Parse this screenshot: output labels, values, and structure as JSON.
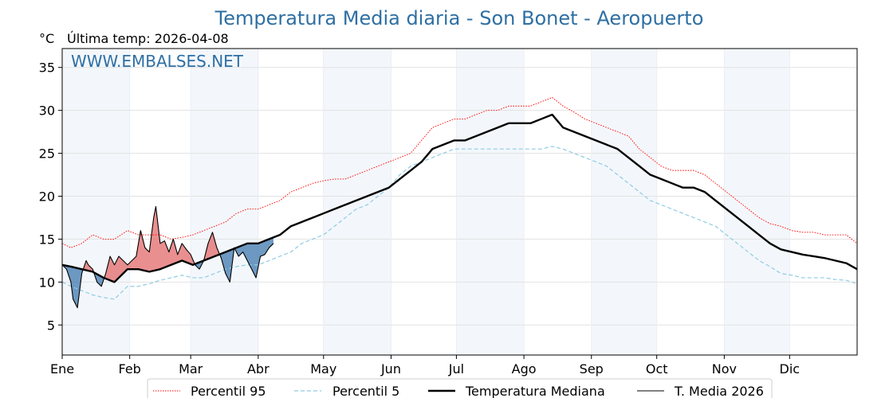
{
  "chart_data": {
    "type": "line",
    "title": "Temperatura Media diaria - Son Bonet - Aeropuerto",
    "unit_label": "°C",
    "last_temp_label": "Última temp: 2026-04-08",
    "watermark": "WWW.EMBALSES.NET",
    "ylim": [
      1.5,
      37.2
    ],
    "yticks": [
      5,
      10,
      15,
      20,
      25,
      30,
      35
    ],
    "xlim": [
      1,
      366
    ],
    "months": [
      "Ene",
      "Feb",
      "Mar",
      "Abr",
      "May",
      "Jun",
      "Jul",
      "Ago",
      "Sep",
      "Oct",
      "Nov",
      "Dic"
    ],
    "month_starts": [
      1,
      32,
      60,
      91,
      121,
      152,
      182,
      213,
      244,
      274,
      305,
      335
    ],
    "legend_placement": "bottom-center",
    "legend": [
      "Percentil 95",
      "Percentil 5",
      "Temperatura Mediana",
      "T. Media 2026"
    ],
    "series": [
      {
        "name": "Percentil 95",
        "x": [
          1,
          5,
          10,
          15,
          20,
          25,
          31,
          36,
          41,
          46,
          51,
          56,
          61,
          66,
          71,
          76,
          81,
          86,
          91,
          96,
          101,
          106,
          111,
          116,
          121,
          126,
          131,
          136,
          141,
          146,
          151,
          156,
          161,
          166,
          171,
          176,
          181,
          186,
          191,
          196,
          201,
          206,
          211,
          216,
          221,
          226,
          231,
          236,
          241,
          246,
          251,
          256,
          261,
          266,
          271,
          276,
          281,
          286,
          291,
          296,
          301,
          306,
          311,
          316,
          321,
          326,
          331,
          336,
          341,
          346,
          351,
          356,
          361,
          366
        ],
        "values": [
          14.5,
          14,
          14.5,
          15.5,
          15,
          15,
          16,
          15.5,
          15.5,
          15.5,
          15,
          15.2,
          15.5,
          16,
          16.5,
          17,
          18,
          18.5,
          18.5,
          19,
          19.5,
          20.5,
          21,
          21.5,
          21.8,
          22,
          22,
          22.5,
          23,
          23.5,
          24,
          24.5,
          25,
          26.5,
          28,
          28.5,
          29,
          29,
          29.5,
          30,
          30,
          30.5,
          30.5,
          30.5,
          31,
          31.5,
          30.5,
          29.8,
          29,
          28.5,
          28,
          27.5,
          27,
          25.5,
          24.5,
          23.5,
          23,
          23,
          23,
          22.5,
          21.5,
          20.5,
          19.5,
          18.5,
          17.5,
          16.8,
          16.5,
          16,
          15.8,
          15.8,
          15.5,
          15.5,
          15.5,
          14.5
        ],
        "color": "#ff0000",
        "style": "dotted"
      },
      {
        "name": "Percentil 5",
        "x": [
          1,
          5,
          10,
          15,
          20,
          25,
          31,
          36,
          41,
          46,
          51,
          56,
          61,
          66,
          71,
          76,
          81,
          86,
          91,
          96,
          101,
          106,
          111,
          116,
          121,
          126,
          131,
          136,
          141,
          146,
          151,
          156,
          161,
          166,
          171,
          176,
          181,
          186,
          191,
          196,
          201,
          206,
          211,
          216,
          221,
          226,
          231,
          236,
          241,
          246,
          251,
          256,
          261,
          266,
          271,
          276,
          281,
          286,
          291,
          296,
          301,
          306,
          311,
          316,
          321,
          326,
          331,
          336,
          341,
          346,
          351,
          356,
          361,
          366
        ],
        "values": [
          10,
          9.5,
          9,
          8.5,
          8.2,
          8,
          9.5,
          9.5,
          9.8,
          10.2,
          10.5,
          10.8,
          10.5,
          10.5,
          11,
          11.5,
          11.8,
          12,
          12,
          12.5,
          13,
          13.5,
          14.5,
          15,
          15.5,
          16.5,
          17.5,
          18.5,
          19,
          20,
          21,
          22.5,
          23.5,
          24,
          24.5,
          25,
          25.5,
          25.5,
          25.5,
          25.5,
          25.5,
          25.5,
          25.5,
          25.5,
          25.5,
          25.8,
          25.5,
          25,
          24.5,
          24,
          23.5,
          22.5,
          21.5,
          20.5,
          19.5,
          19,
          18.5,
          18,
          17.5,
          17,
          16.5,
          15.5,
          14.5,
          13.5,
          12.5,
          11.8,
          11,
          10.8,
          10.5,
          10.5,
          10.5,
          10.3,
          10.2,
          9.8
        ],
        "color": "#8fcbe3",
        "style": "dashed"
      },
      {
        "name": "Temperatura Mediana",
        "x": [
          1,
          5,
          10,
          15,
          20,
          25,
          31,
          36,
          41,
          46,
          51,
          56,
          61,
          66,
          71,
          76,
          81,
          86,
          91,
          96,
          101,
          106,
          111,
          116,
          121,
          126,
          131,
          136,
          141,
          146,
          151,
          156,
          161,
          166,
          171,
          176,
          181,
          186,
          191,
          196,
          201,
          206,
          211,
          216,
          221,
          226,
          231,
          236,
          241,
          246,
          251,
          256,
          261,
          266,
          271,
          276,
          281,
          286,
          291,
          296,
          301,
          306,
          311,
          316,
          321,
          326,
          331,
          336,
          341,
          346,
          351,
          356,
          361,
          366
        ],
        "values": [
          12,
          11.8,
          11.5,
          11.2,
          10.5,
          10,
          11.5,
          11.5,
          11.2,
          11.5,
          12,
          12.5,
          12,
          12.5,
          13,
          13.5,
          14,
          14.5,
          14.5,
          15,
          15.5,
          16.5,
          17,
          17.5,
          18,
          18.5,
          19,
          19.5,
          20,
          20.5,
          21,
          22,
          23,
          24,
          25.5,
          26,
          26.5,
          26.5,
          27,
          27.5,
          28,
          28.5,
          28.5,
          28.5,
          29,
          29.5,
          28,
          27.5,
          27,
          26.5,
          26,
          25.5,
          24.5,
          23.5,
          22.5,
          22,
          21.5,
          21,
          21,
          20.5,
          19.5,
          18.5,
          17.5,
          16.5,
          15.5,
          14.5,
          13.8,
          13.5,
          13.2,
          13,
          12.8,
          12.5,
          12.2,
          11.5
        ],
        "color": "#000000",
        "style": "solid-thick"
      },
      {
        "name": "T. Media 2026",
        "x": [
          1,
          3,
          5,
          6,
          7,
          8,
          10,
          12,
          13,
          15,
          17,
          19,
          21,
          23,
          25,
          27,
          29,
          31,
          33,
          35,
          37,
          39,
          41,
          42,
          43,
          44,
          46,
          48,
          50,
          52,
          54,
          56,
          58,
          60,
          62,
          64,
          66,
          68,
          70,
          72,
          74,
          76,
          78,
          80,
          82,
          84,
          86,
          88,
          90,
          92,
          94,
          96,
          98
        ],
        "values": [
          12,
          11.5,
          10,
          8,
          7.5,
          7,
          11,
          12.5,
          12,
          11.5,
          10,
          9.5,
          11,
          13,
          12,
          13,
          12.5,
          12,
          12.5,
          13,
          16,
          14,
          13.5,
          15.5,
          17.5,
          18.8,
          14.5,
          14.8,
          13.5,
          15,
          13.2,
          14.5,
          13.8,
          13.2,
          12,
          11.5,
          12.5,
          14.5,
          15.8,
          14,
          12.8,
          11,
          10,
          14,
          13,
          13.5,
          12.5,
          11.5,
          10.5,
          13,
          13.2,
          14,
          14.5
        ],
        "color": "#000000",
        "style": "solid-thin"
      }
    ]
  }
}
